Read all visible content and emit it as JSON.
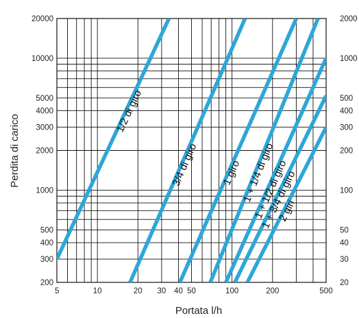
{
  "chart_data": {
    "type": "line",
    "xscale": "log",
    "yscale": "log",
    "xlabel": "Portata l/h",
    "ylabel": "Perdita di carico",
    "xlim": [
      5,
      500
    ],
    "ylim": [
      200,
      20000
    ],
    "x_ticks": [
      5,
      10,
      20,
      30,
      40,
      50,
      100,
      200,
      500
    ],
    "x_tick_labels": [
      "5",
      "10",
      "20",
      "30",
      "40",
      "50",
      "100",
      "200",
      "500"
    ],
    "y_ticks": [
      200,
      300,
      400,
      500,
      1000,
      2000,
      3000,
      4000,
      5000,
      10000,
      20000
    ],
    "y_tick_labels": [
      "200",
      "300",
      "400",
      "500",
      "1000",
      "2000",
      "3000",
      "4000",
      "5000",
      "10000",
      "20000"
    ],
    "y_ticks_right": [
      20,
      30,
      40,
      50,
      100,
      200,
      300,
      400,
      500,
      1000,
      2000
    ],
    "y_tick_labels_right": [
      "20",
      "30",
      "40",
      "50",
      "100",
      "200",
      "300",
      "400",
      "500",
      "1000",
      "2000"
    ],
    "grid": true,
    "series_color": "#2ea6d8",
    "series": [
      {
        "name": "1/2 di giro",
        "x": [
          5,
          34
        ],
        "y": [
          300,
          20000
        ]
      },
      {
        "name": "3/4 di giro",
        "x": [
          17.5,
          125
        ],
        "y": [
          200,
          20000
        ]
      },
      {
        "name": "1 giro",
        "x": [
          41,
          300
        ],
        "y": [
          200,
          20000
        ]
      },
      {
        "name": "1 + 1/4 di giro",
        "x": [
          69,
          435
        ],
        "y": [
          200,
          20000
        ]
      },
      {
        "name": "1 + 1/2 di giro",
        "x": [
          90,
          500
        ],
        "y": [
          200,
          10000
        ]
      },
      {
        "name": "1 + 3/4 di giro",
        "x": [
          105,
          500
        ],
        "y": [
          200,
          5200
        ]
      },
      {
        "name": "2 giri",
        "x": [
          130,
          500
        ],
        "y": [
          200,
          3000
        ]
      }
    ]
  }
}
